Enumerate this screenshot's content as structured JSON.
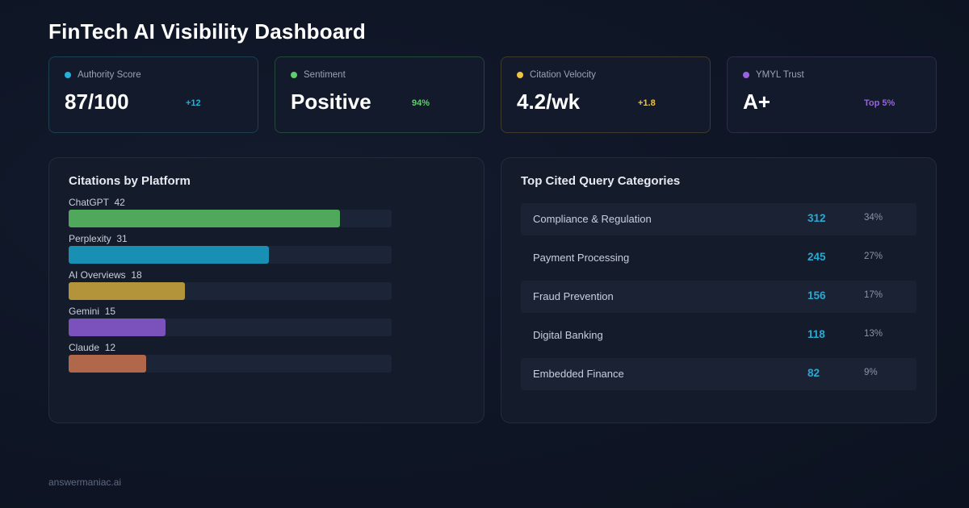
{
  "header": {
    "title": "FinTech AI Visibility Dashboard"
  },
  "kpis": [
    {
      "label": "Authority Score",
      "value": "87/100",
      "delta": "+12",
      "color": "#23b0db",
      "border": "#1e3f52"
    },
    {
      "label": "Sentiment",
      "value": "Positive",
      "delta": "94%",
      "color": "#5fce6d",
      "border": "#24473a"
    },
    {
      "label": "Citation Velocity",
      "value": "4.2/wk",
      "delta": "+1.8",
      "color": "#f1c440",
      "border": "#3e3a2c"
    },
    {
      "label": "YMYL Trust",
      "value": "A+",
      "delta": "Top 5%",
      "color": "#9a62e0",
      "border": "#2e2c48"
    }
  ],
  "platforms": {
    "title": "Citations by Platform",
    "max": 50,
    "items": [
      {
        "name": "ChatGPT",
        "count": "42",
        "value": 42,
        "color": "#4fa85b"
      },
      {
        "name": "Perplexity",
        "count": "31",
        "value": 31,
        "color": "#1890b4"
      },
      {
        "name": "AI Overviews",
        "count": "18",
        "value": 18,
        "color": "#b3943a"
      },
      {
        "name": "Gemini",
        "count": "15",
        "value": 15,
        "color": "#7b52bc"
      },
      {
        "name": "Claude",
        "count": "12",
        "value": 12,
        "color": "#b0674a"
      }
    ]
  },
  "queries": {
    "title": "Top Cited Query Categories",
    "rows": [
      {
        "name": "Compliance & Regulation",
        "count": "312",
        "pct": "34%"
      },
      {
        "name": "Payment Processing",
        "count": "245",
        "pct": "27%"
      },
      {
        "name": "Fraud Prevention",
        "count": "156",
        "pct": "17%"
      },
      {
        "name": "Digital Banking",
        "count": "118",
        "pct": "13%"
      },
      {
        "name": "Embedded Finance",
        "count": "82",
        "pct": "9%"
      }
    ]
  },
  "footer": {
    "text": "answermaniac.ai"
  }
}
